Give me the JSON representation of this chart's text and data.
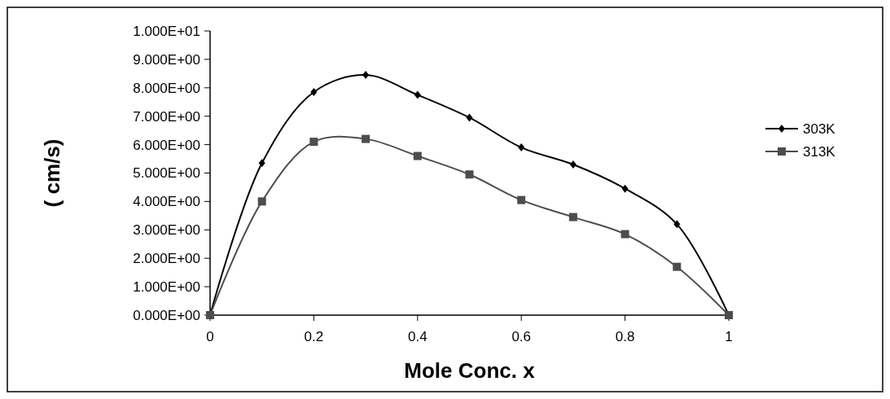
{
  "chart_data": {
    "type": "line",
    "xlabel": "Mole Conc.  x",
    "ylabel": "( cm/s)",
    "x": [
      0,
      0.1,
      0.2,
      0.3,
      0.4,
      0.5,
      0.6,
      0.7,
      0.8,
      0.9,
      1
    ],
    "series": [
      {
        "name": "303K",
        "color": "#000000",
        "marker": "diamond",
        "values": [
          0,
          5.35,
          7.85,
          8.45,
          7.75,
          6.95,
          5.9,
          5.3,
          4.45,
          3.2,
          0
        ]
      },
      {
        "name": "313K",
        "color": "#4d4d4d",
        "marker": "square",
        "values": [
          0,
          4.0,
          6.1,
          6.2,
          5.6,
          4.95,
          4.05,
          3.45,
          2.85,
          1.7,
          0
        ]
      }
    ],
    "xlim": [
      0,
      1
    ],
    "xticks": [
      0,
      0.2,
      0.4,
      0.6,
      0.8,
      1
    ],
    "ylim": [
      0,
      10
    ],
    "yticks": [
      {
        "value": 0,
        "label": "0.000E+00"
      },
      {
        "value": 1,
        "label": "1.000E+00"
      },
      {
        "value": 2,
        "label": "2.000E+00"
      },
      {
        "value": 3,
        "label": "3.000E+00"
      },
      {
        "value": 4,
        "label": "4.000E+00"
      },
      {
        "value": 5,
        "label": "5.000E+00"
      },
      {
        "value": 6,
        "label": "6.000E+00"
      },
      {
        "value": 7,
        "label": "7.000E+00"
      },
      {
        "value": 8,
        "label": "8.000E+00"
      },
      {
        "value": 9,
        "label": "9.000E+00"
      },
      {
        "value": 10,
        "label": "1.000E+01"
      }
    ],
    "legend": "right",
    "grid": false,
    "line_style": "solid"
  }
}
